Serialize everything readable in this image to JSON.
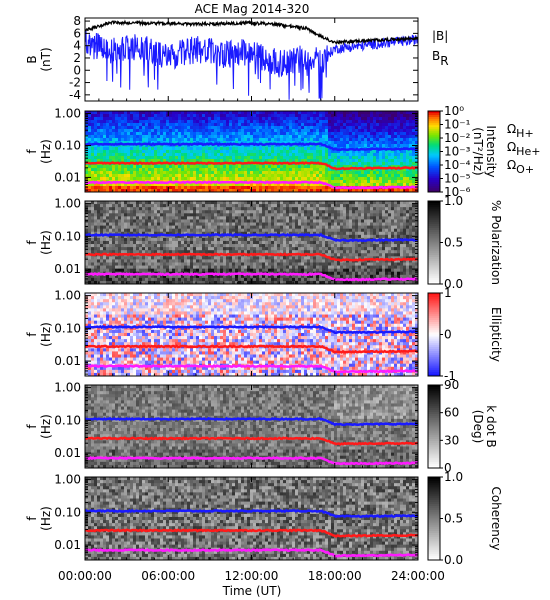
{
  "chart_data": {
    "type": "multi-panel",
    "title": "ACE Mag 2014-320",
    "xlabel": "Time (UT)",
    "x_ticks": [
      "00:00:00",
      "06:00:00",
      "12:00:00",
      "18:00:00",
      "24:00:00"
    ],
    "x_range_hours": [
      0,
      24
    ],
    "colors": {
      "blue": "#1a1aff",
      "red": "#ff1a1a",
      "magenta": "#ff1aff",
      "black": "#000000"
    },
    "panels": [
      {
        "id": "field",
        "type": "line",
        "ylabel": "B",
        "yunit": "(nT)",
        "ylim": [
          -5,
          8.5
        ],
        "y_ticks": [
          "8",
          "6",
          "4",
          "2",
          "0",
          "-2",
          "-4"
        ],
        "legend": [
          {
            "name": "|B|",
            "color": "black"
          },
          {
            "name": "B",
            "sub": "R",
            "color": "blue"
          }
        ],
        "series": [
          {
            "name": "|B|",
            "x_hours": [
              0,
              2,
              4,
              6,
              8,
              10,
              12,
              14,
              16,
              17,
              18,
              20,
              22,
              24
            ],
            "values": [
              6.5,
              7.8,
              7.7,
              7.6,
              7.5,
              7.6,
              7.7,
              7.4,
              6.8,
              5.5,
              4.5,
              4.8,
              5.0,
              5.2
            ]
          },
          {
            "name": "B R",
            "x_hours": [
              0,
              2,
              4,
              6,
              8,
              10,
              12,
              14,
              16,
              17,
              18,
              20,
              22,
              24
            ],
            "values": [
              4.5,
              3.0,
              4.0,
              2.0,
              3.5,
              2.5,
              3.0,
              1.0,
              2.0,
              1.5,
              3.5,
              4.0,
              4.5,
              5.0
            ]
          }
        ]
      },
      {
        "id": "intensity",
        "type": "heatmap",
        "ylabel": "f",
        "yunit": "(Hz)",
        "y_ticks": [
          "1.00",
          "0.10",
          "0.01"
        ],
        "colorbar": {
          "label": "Intensity",
          "unit_text": "(nT²/Hz)",
          "ticks": [
            "10⁰",
            "10⁻¹",
            "10⁻²",
            "10⁻³",
            "10⁻⁴",
            "10⁻⁵",
            "10⁻⁶"
          ]
        },
        "legend": [
          {
            "name": "Ω",
            "sub": "H+",
            "color": "blue"
          },
          {
            "name": "Ω",
            "sub": "He+",
            "color": "red"
          },
          {
            "name": "Ω",
            "sub": "O+",
            "color": "magenta"
          }
        ]
      },
      {
        "id": "polarization",
        "type": "heatmap",
        "ylabel": "f",
        "yunit": "(Hz)",
        "y_ticks": [
          "1.00",
          "0.10",
          "0.01"
        ],
        "colorbar": {
          "label": "% Polarization",
          "ticks": [
            "1.0",
            "0.5",
            "0.0"
          ]
        }
      },
      {
        "id": "ellipticity",
        "type": "heatmap",
        "ylabel": "f",
        "yunit": "(Hz)",
        "y_ticks": [
          "1.00",
          "0.10",
          "0.01"
        ],
        "colorbar": {
          "label": "Ellipticity",
          "ticks": [
            "1",
            "0",
            "-1"
          ]
        }
      },
      {
        "id": "kdotb",
        "type": "heatmap",
        "ylabel": "f",
        "yunit": "(Hz)",
        "y_ticks": [
          "1.00",
          "0.10",
          "0.01"
        ],
        "colorbar": {
          "label": "k dot B",
          "unit_text": "(Deg)",
          "ticks": [
            "90",
            "60",
            "30",
            "0"
          ]
        }
      },
      {
        "id": "coherency",
        "type": "heatmap",
        "ylabel": "f",
        "yunit": "(Hz)",
        "y_ticks": [
          "1.00",
          "0.10",
          "0.01"
        ],
        "colorbar": {
          "label": "Coherency",
          "ticks": [
            "1.0",
            "0.5",
            "0.0"
          ]
        }
      }
    ],
    "gyrofrequency_lines_hz": {
      "H+": {
        "x_hours": [
          0,
          17,
          18,
          24
        ],
        "values": [
          0.11,
          0.11,
          0.075,
          0.078
        ]
      },
      "He+": {
        "x_hours": [
          0,
          17,
          18,
          24
        ],
        "values": [
          0.028,
          0.028,
          0.019,
          0.02
        ]
      },
      "O+": {
        "x_hours": [
          0,
          17,
          18,
          24
        ],
        "values": [
          0.007,
          0.007,
          0.0047,
          0.005
        ]
      }
    }
  }
}
